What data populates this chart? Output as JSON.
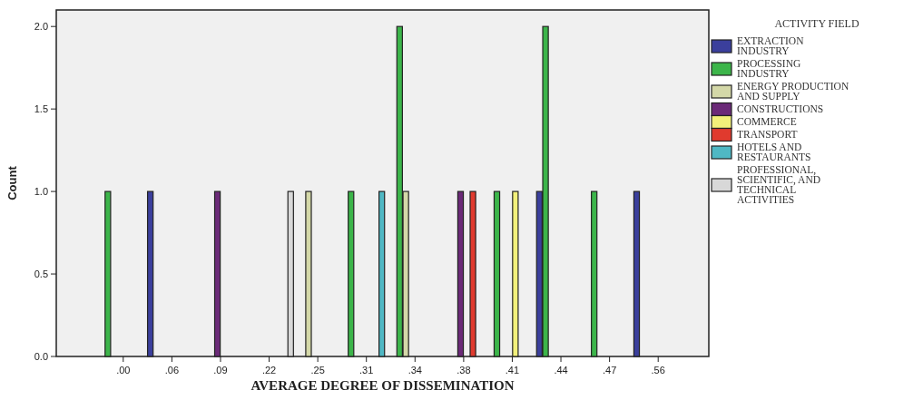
{
  "chart_data": {
    "type": "bar",
    "xlabel": "AVERAGE DEGREE OF DISSEMINATION",
    "ylabel": "Count",
    "legend_title": "ACTIVITY FIELD",
    "legend": "right",
    "categories": [
      ".00",
      ".06",
      ".09",
      ".22",
      ".25",
      ".31",
      ".34",
      ".38",
      ".41",
      ".44",
      ".47",
      ".56"
    ],
    "ylim": [
      0,
      2.1
    ],
    "yticks": [
      {
        "value": 0,
        "label": "0.0"
      },
      {
        "value": 0.5,
        "label": "0.5"
      },
      {
        "value": 1,
        "label": "1.0"
      },
      {
        "value": 1.5,
        "label": "1.5"
      },
      {
        "value": 2,
        "label": "2.0"
      }
    ],
    "series": [
      {
        "name": "EXTRACTION INDUSTRY",
        "color": "#3b3f9c",
        "values": [
          null,
          1,
          null,
          null,
          null,
          null,
          null,
          null,
          null,
          1,
          null,
          1
        ]
      },
      {
        "name": "PROCESSING INDUSTRY",
        "color": "#3cb54a",
        "values": [
          1,
          null,
          null,
          null,
          null,
          1,
          2,
          null,
          1,
          2,
          1,
          null
        ]
      },
      {
        "name": "ENERGY PRODUCTION AND SUPPLY",
        "color": "#d4d8a8",
        "values": [
          null,
          null,
          null,
          null,
          1,
          null,
          1,
          null,
          null,
          null,
          null,
          null
        ]
      },
      {
        "name": "CONSTRUCTIONS",
        "color": "#6b2a78",
        "values": [
          null,
          null,
          1,
          null,
          null,
          null,
          null,
          1,
          null,
          null,
          null,
          null
        ]
      },
      {
        "name": "COMMERCE",
        "color": "#f2f07a",
        "values": [
          null,
          null,
          null,
          null,
          null,
          null,
          null,
          null,
          1,
          null,
          null,
          null
        ]
      },
      {
        "name": "TRANSPORT",
        "color": "#e03a2e",
        "values": [
          null,
          null,
          null,
          null,
          null,
          null,
          null,
          1,
          null,
          null,
          null,
          null
        ]
      },
      {
        "name": "HOTELS AND RESTAURANTS",
        "color": "#4fb8c4",
        "values": [
          null,
          null,
          null,
          null,
          null,
          1,
          null,
          null,
          null,
          null,
          null,
          null
        ]
      },
      {
        "name": "PROFESSIONAL, SCIENTIFIC, AND TECHNICAL ACTIVITIES",
        "color": "#d8d8d8",
        "values": [
          null,
          null,
          null,
          1,
          null,
          null,
          null,
          null,
          null,
          null,
          null,
          null
        ]
      }
    ]
  }
}
